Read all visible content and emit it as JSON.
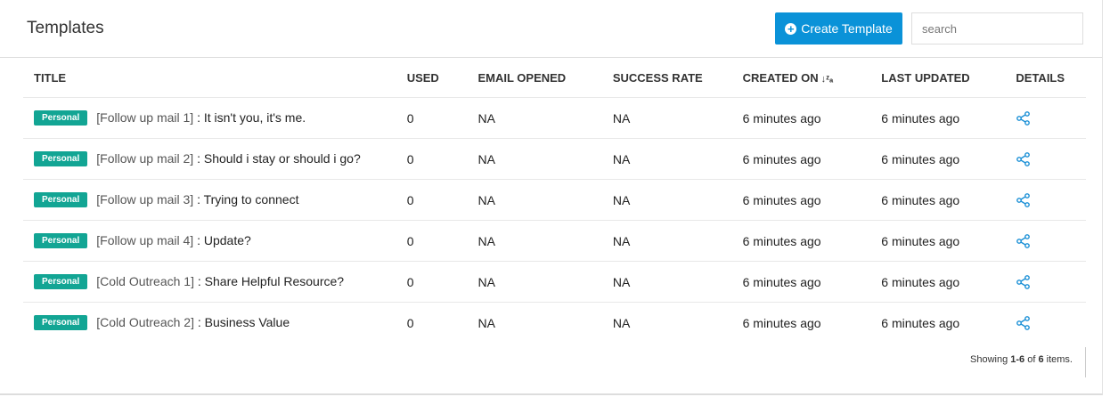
{
  "header": {
    "title": "Templates",
    "create_label": "Create Template",
    "search_placeholder": "search"
  },
  "columns": [
    "TITLE",
    "USED",
    "EMAIL OPENED",
    "SUCCESS RATE",
    "CREATED ON",
    "LAST UPDATED",
    "DETAILS"
  ],
  "sort_icon": "sort-alpha-down-icon",
  "rows": [
    {
      "badge": "Personal",
      "tag": "[Follow up mail 1]",
      "subject": " : It isn't you, it's me.",
      "used": "0",
      "opened": "NA",
      "rate": "NA",
      "created": "6 minutes ago",
      "updated": "6 minutes ago"
    },
    {
      "badge": "Personal",
      "tag": "[Follow up mail 2]",
      "subject": " : Should i stay or should i go?",
      "used": "0",
      "opened": "NA",
      "rate": "NA",
      "created": "6 minutes ago",
      "updated": "6 minutes ago"
    },
    {
      "badge": "Personal",
      "tag": "[Follow up mail 3]",
      "subject": " : Trying to connect",
      "used": "0",
      "opened": "NA",
      "rate": "NA",
      "created": "6 minutes ago",
      "updated": "6 minutes ago"
    },
    {
      "badge": "Personal",
      "tag": "[Follow up mail 4]",
      "subject": " : Update?",
      "used": "0",
      "opened": "NA",
      "rate": "NA",
      "created": "6 minutes ago",
      "updated": "6 minutes ago"
    },
    {
      "badge": "Personal",
      "tag": "[Cold Outreach 1]",
      "subject": " : Share Helpful Resource?",
      "used": "0",
      "opened": "NA",
      "rate": "NA",
      "created": "6 minutes ago",
      "updated": "6 minutes ago"
    },
    {
      "badge": "Personal",
      "tag": "[Cold Outreach 2]",
      "subject": " : Business Value",
      "used": "0",
      "opened": "NA",
      "rate": "NA",
      "created": "6 minutes ago",
      "updated": "6 minutes ago"
    }
  ],
  "footer": {
    "prefix": "Showing ",
    "range": "1-6",
    "mid": " of ",
    "total": "6",
    "suffix": " items."
  },
  "colors": {
    "accent": "#0a92d8",
    "badge": "#12a594"
  }
}
